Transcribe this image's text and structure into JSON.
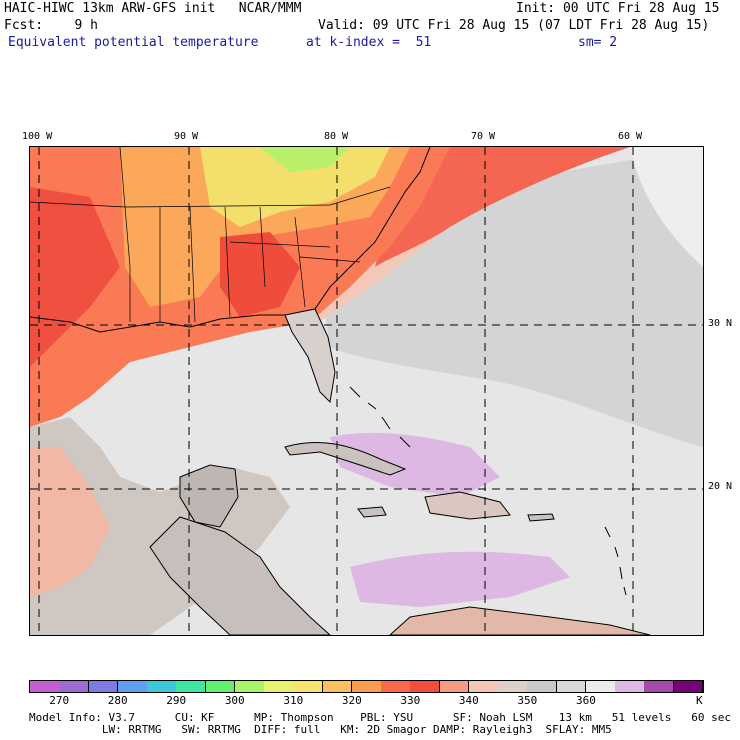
{
  "header": {
    "model_title": "HAIC-HIWC 13km ARW-GFS init   NCAR/MMM",
    "init_time": "Init: 00 UTC Fri 28 Aug 15",
    "forecast_label": "Fcst:    9 h",
    "valid_time": "Valid: 09 UTC Fri 28 Aug 15 (07 LDT Fri 28 Aug 15)",
    "field_name": "Equivalent potential temperature",
    "level": "at k-index =  51",
    "smoothing": "sm= 2"
  },
  "map": {
    "longitude_labels": [
      "100 W",
      "90 W",
      "80 W",
      "70 W",
      "60 W"
    ],
    "latitude_labels": [
      "30 N",
      "20 N"
    ]
  },
  "colorbar": {
    "tick_labels": [
      "270",
      "280",
      "290",
      "300",
      "310",
      "320",
      "330",
      "340",
      "350",
      "360"
    ],
    "unit": "K",
    "colors": [
      "#c55fd1",
      "#9e6ad3",
      "#7b7be3",
      "#5e9ff0",
      "#3cc8d8",
      "#3fe6a2",
      "#63f070",
      "#a8f56a",
      "#e6f26e",
      "#f7e370",
      "#fac060",
      "#fb9d4e",
      "#fa6a4a",
      "#f24e3e",
      "#f79a82",
      "#f5c6b3",
      "#dcd0c8",
      "#c8c8c8",
      "#d8d8d8",
      "#ececec",
      "#dcb8e3",
      "#a44aa8",
      "#7a007a"
    ]
  },
  "model_info": {
    "line1": "Model Info: V3.7      CU: KF      MP: Thompson    PBL: YSU      SF: Noah LSM    13 km   51 levels   60 sec",
    "line2": "           LW: RRTMG   SW: RRTMG  DIFF: full   KM: 2D Smagor DAMP: Rayleigh3  SFLAY: MM5"
  }
}
